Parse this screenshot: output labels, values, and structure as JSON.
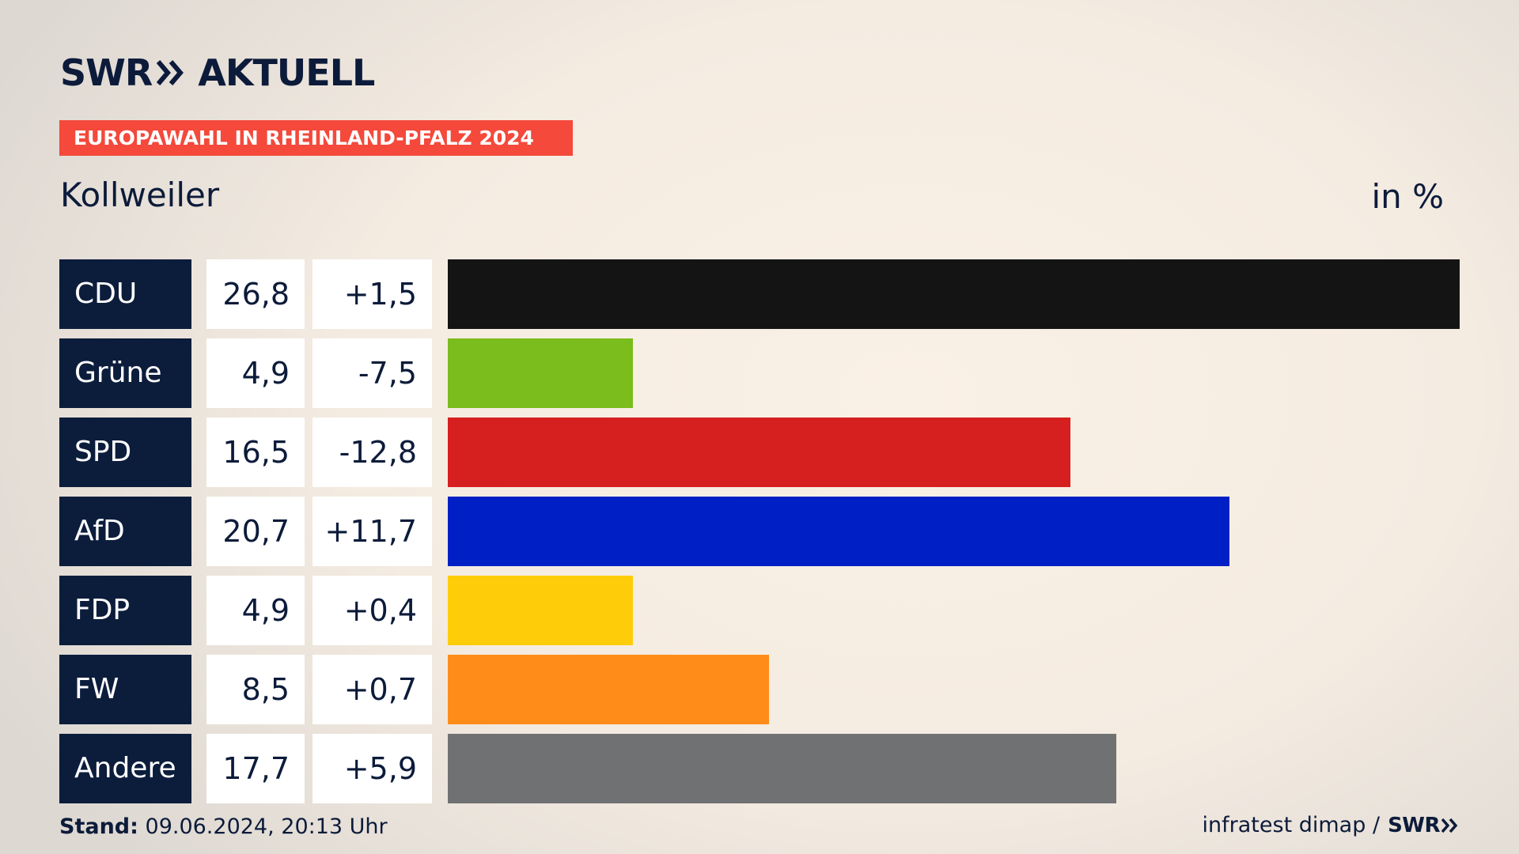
{
  "header": {
    "logo_left": "SWR",
    "logo_right": "AKTUELL",
    "banner": "EUROPAWAHL IN RHEINLAND-PFALZ 2024"
  },
  "chart_data": {
    "type": "bar",
    "orientation": "horizontal",
    "title": "Kollweiler",
    "unit_label": "in %",
    "categories": [
      "CDU",
      "Grüne",
      "SPD",
      "AfD",
      "FDP",
      "FW",
      "Andere"
    ],
    "values": [
      26.8,
      4.9,
      16.5,
      20.7,
      4.9,
      8.5,
      17.7
    ],
    "value_labels": [
      "26,8",
      "4,9",
      "16,5",
      "20,7",
      "4,9",
      "8,5",
      "17,7"
    ],
    "diff_labels": [
      "+1,5",
      "-7,5",
      "-12,8",
      "+11,7",
      "+0,4",
      "+0,7",
      "+5,9"
    ],
    "colors": [
      "#141414",
      "#7abd1c",
      "#d61f1f",
      "#0020c6",
      "#ffcc0a",
      "#ff8c19",
      "#707173"
    ],
    "xlim": [
      0,
      26.8
    ]
  },
  "footer": {
    "stand_label": "Stand:",
    "stand_value": "09.06.2024, 20:13 Uhr",
    "source": "infratest dimap /",
    "source_logo": "SWR"
  }
}
